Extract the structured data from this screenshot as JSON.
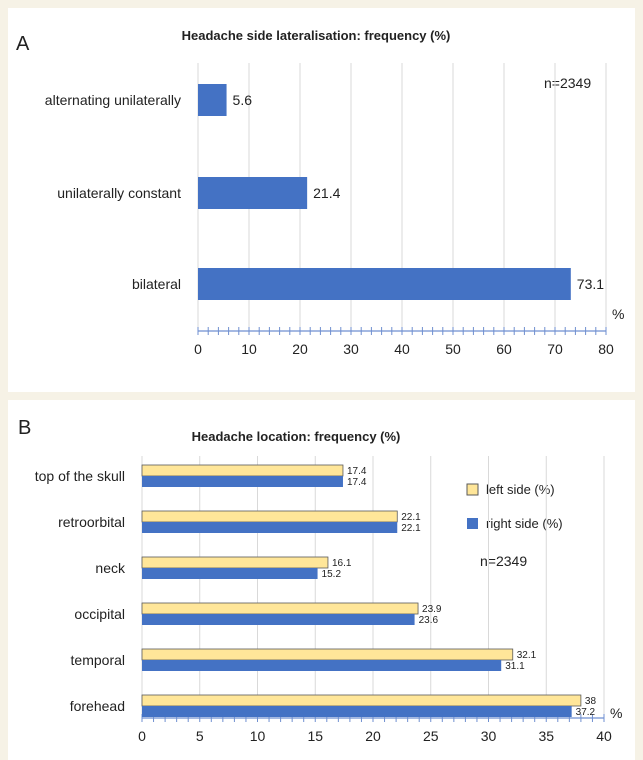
{
  "colors": {
    "bar_blue": "#4472c4",
    "bar_yellow": "#ffe699",
    "bar_yellow_stroke": "#5a5a5a",
    "axis": "#6f8fd0",
    "grid": "#d9d9d9",
    "text": "#222222",
    "background": "#f6f2e6"
  },
  "chart_data": [
    {
      "type": "bar",
      "orientation": "horizontal",
      "panel_label": "A",
      "title": "Headache side lateralisation: frequency (%)",
      "annotation": "n=2349",
      "unit_label": "%",
      "categories": [
        "alternating unilaterally",
        "unilaterally constant",
        "bilateral"
      ],
      "series": [
        {
          "values": [
            5.6,
            21.4,
            73.1
          ]
        }
      ],
      "xlim": [
        0,
        80
      ],
      "xticks": [
        "0",
        "10",
        "20",
        "30",
        "40",
        "50",
        "60",
        "70",
        "80"
      ],
      "grid": true
    },
    {
      "type": "bar",
      "orientation": "horizontal",
      "panel_label": "B",
      "title": "Headache location: frequency (%)",
      "annotation": "n=2349",
      "unit_label": "%",
      "categories": [
        "top of the skull",
        "retroorbital",
        "neck",
        "occipital",
        "temporal",
        "forehead"
      ],
      "series": [
        {
          "name": "left side (%)",
          "values": [
            17.4,
            22.1,
            16.1,
            23.9,
            32.1,
            38
          ]
        },
        {
          "name": "right side (%)",
          "values": [
            17.4,
            22.1,
            15.2,
            23.6,
            31.1,
            37.2
          ]
        }
      ],
      "xlim": [
        0,
        40
      ],
      "xticks": [
        "0",
        "5",
        "10",
        "15",
        "20",
        "25",
        "30",
        "35",
        "40"
      ],
      "grid": true,
      "legend_position": "right"
    }
  ]
}
